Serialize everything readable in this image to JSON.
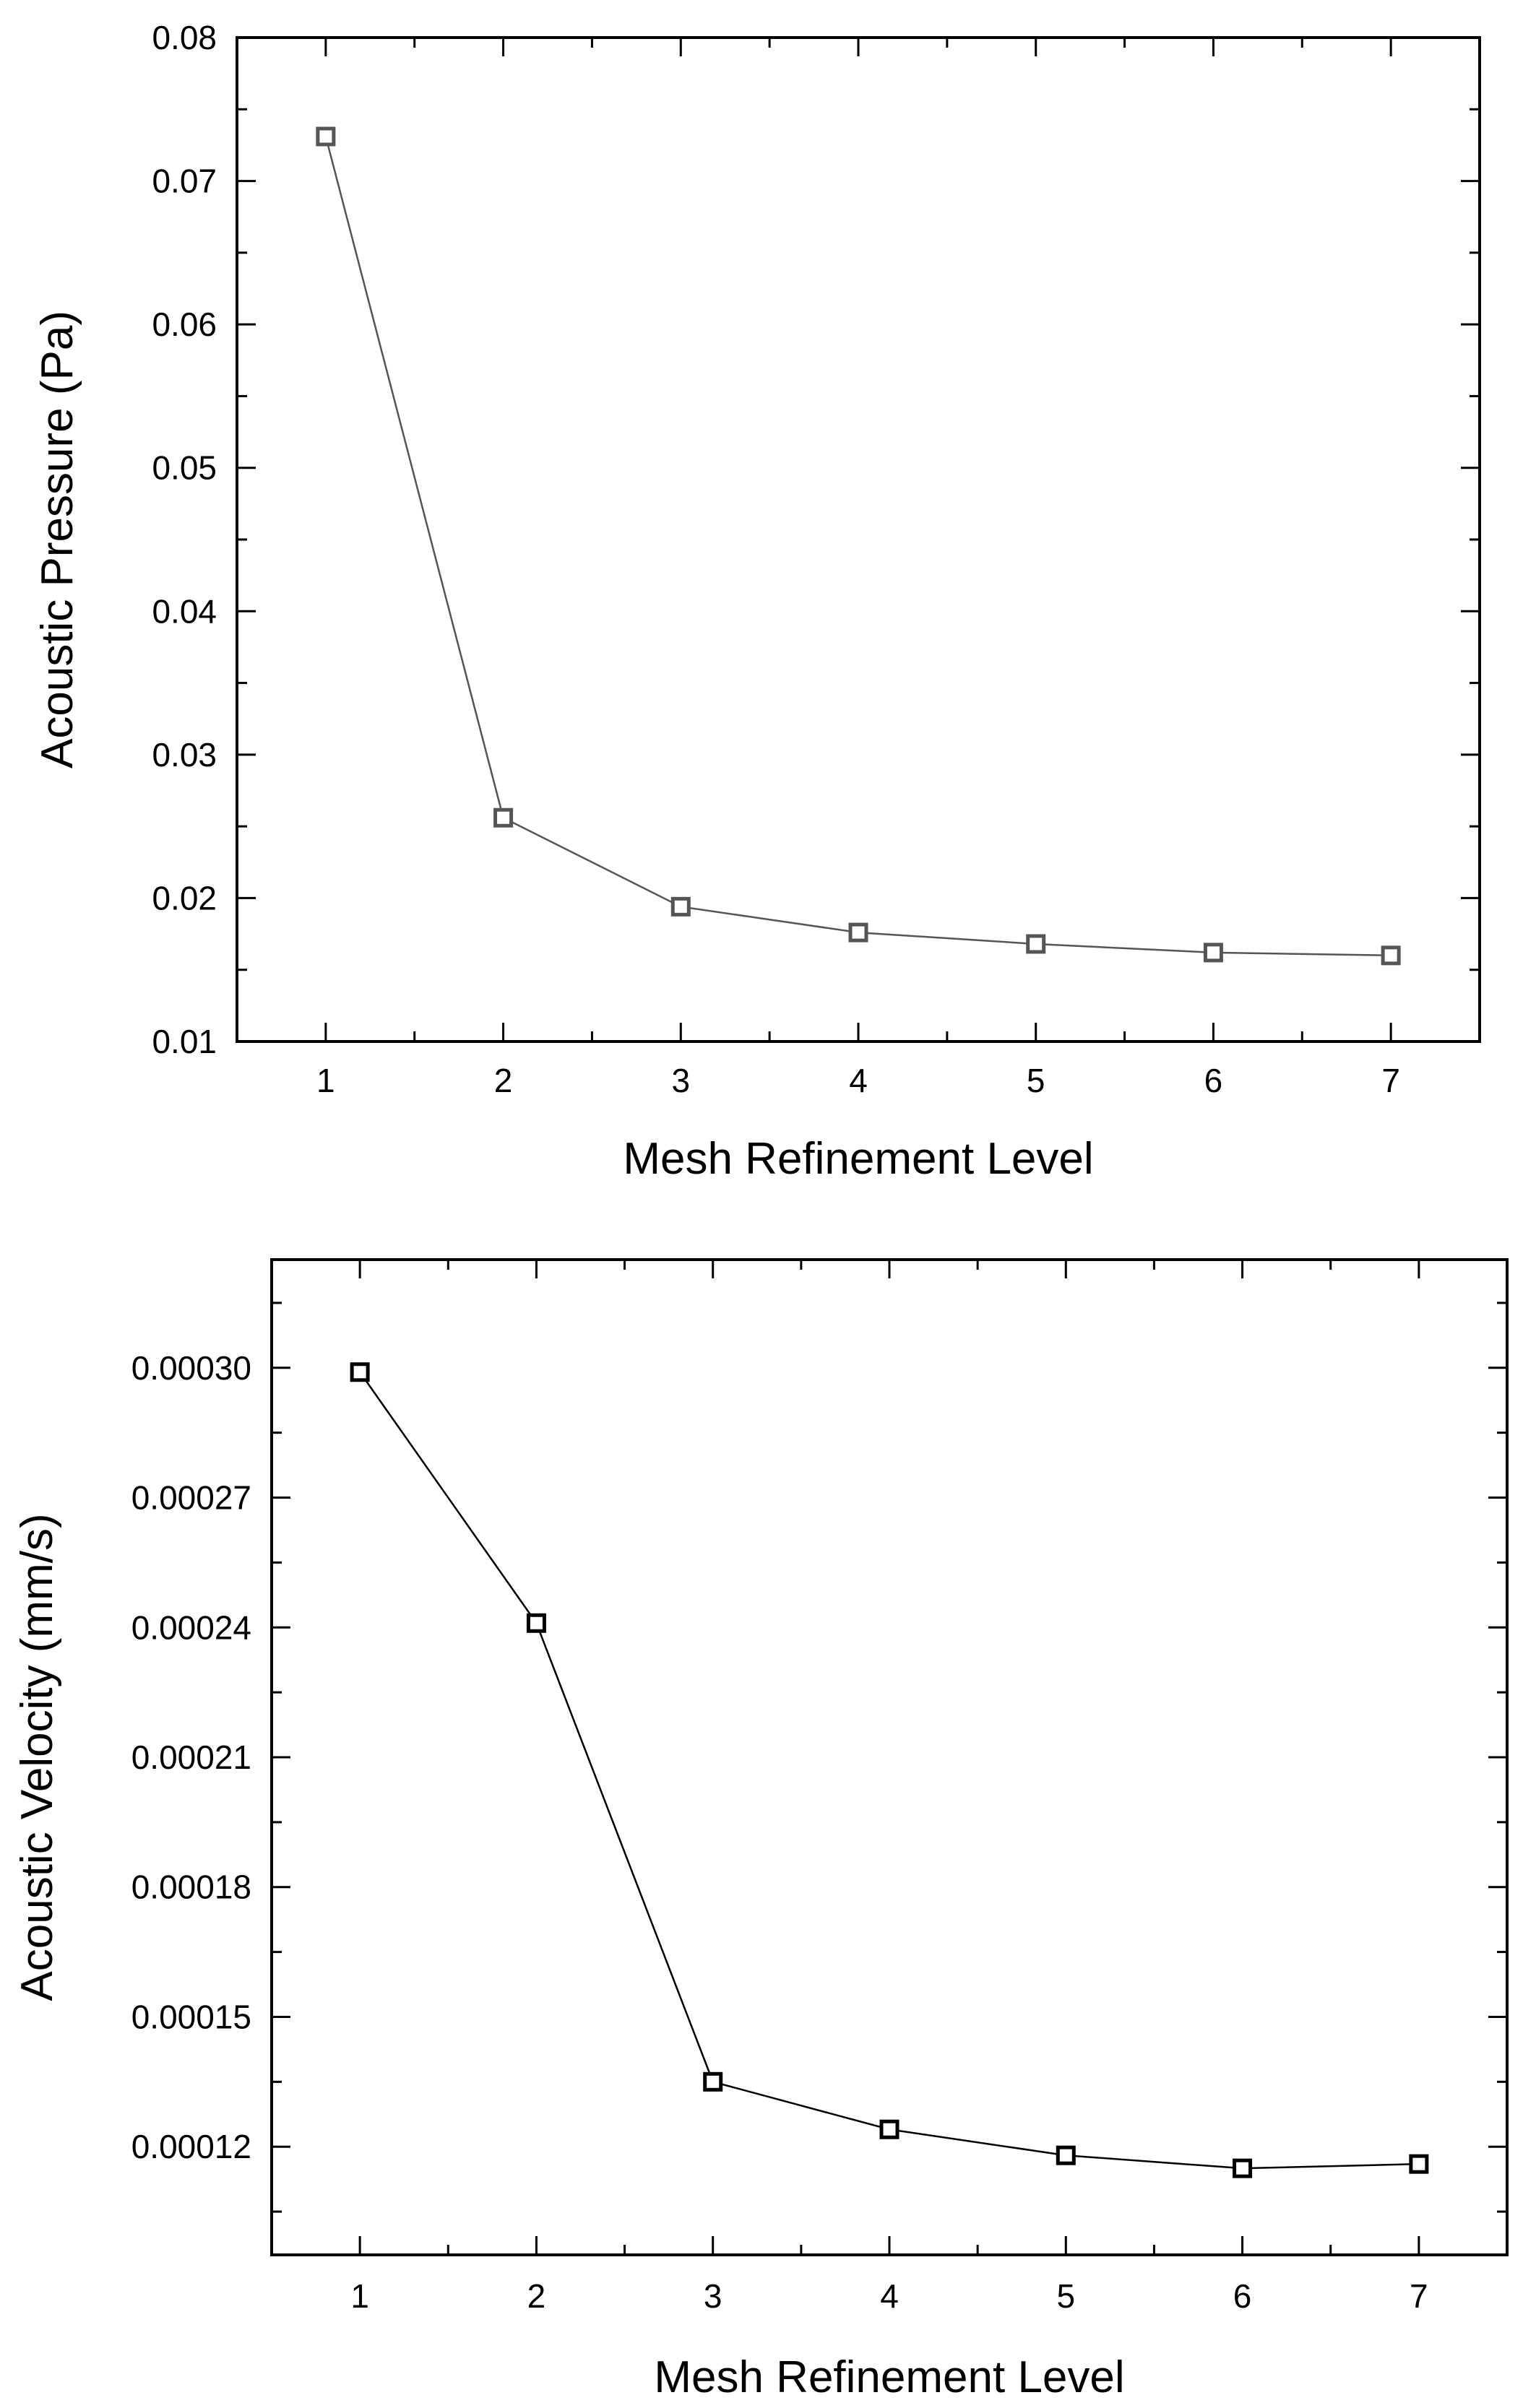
{
  "chart_data": [
    {
      "type": "line",
      "title": "",
      "xlabel": "Mesh Refinement Level",
      "ylabel": "Acoustic Pressure (Pa)",
      "xlim": [
        0.5,
        7.5
      ],
      "ylim": [
        0.01,
        0.08
      ],
      "x": [
        1,
        2,
        3,
        4,
        5,
        6,
        7
      ],
      "x_ticks": [
        1,
        2,
        3,
        4,
        5,
        6,
        7
      ],
      "x_tick_labels": [
        "1",
        "2",
        "3",
        "4",
        "5",
        "6",
        "7"
      ],
      "y_ticks": [
        0.01,
        0.02,
        0.03,
        0.04,
        0.05,
        0.06,
        0.07,
        0.08
      ],
      "y_tick_labels": [
        "0.01",
        "0.02",
        "0.03",
        "0.04",
        "0.05",
        "0.06",
        "0.07",
        "0.08"
      ],
      "grid": false,
      "marker": "open-square",
      "color": "#555555",
      "series": [
        {
          "values": [
            0.0731,
            0.0256,
            0.0194,
            0.0176,
            0.0168,
            0.0162,
            0.016
          ]
        }
      ]
    },
    {
      "type": "line",
      "title": "",
      "xlabel": "Mesh Refinement Level",
      "ylabel": "Acoustic Velocity (mm/s)",
      "xlim": [
        0.5,
        7.5
      ],
      "ylim": [
        9.5e-05,
        0.000325
      ],
      "x": [
        1,
        2,
        3,
        4,
        5,
        6,
        7
      ],
      "x_ticks": [
        1,
        2,
        3,
        4,
        5,
        6,
        7
      ],
      "x_tick_labels": [
        "1",
        "2",
        "3",
        "4",
        "5",
        "6",
        "7"
      ],
      "y_ticks": [
        0.00012,
        0.00015,
        0.00018,
        0.00021,
        0.00024,
        0.00027,
        0.0003
      ],
      "y_tick_labels": [
        "0.00012",
        "0.00015",
        "0.00018",
        "0.00021",
        "0.00024",
        "0.00027",
        "0.00030"
      ],
      "grid": false,
      "marker": "open-square",
      "color": "#000000",
      "series": [
        {
          "values": [
            0.000299,
            0.000241,
            0.000135,
            0.000124,
            0.000118,
            0.000115,
            0.000116
          ]
        }
      ]
    }
  ]
}
